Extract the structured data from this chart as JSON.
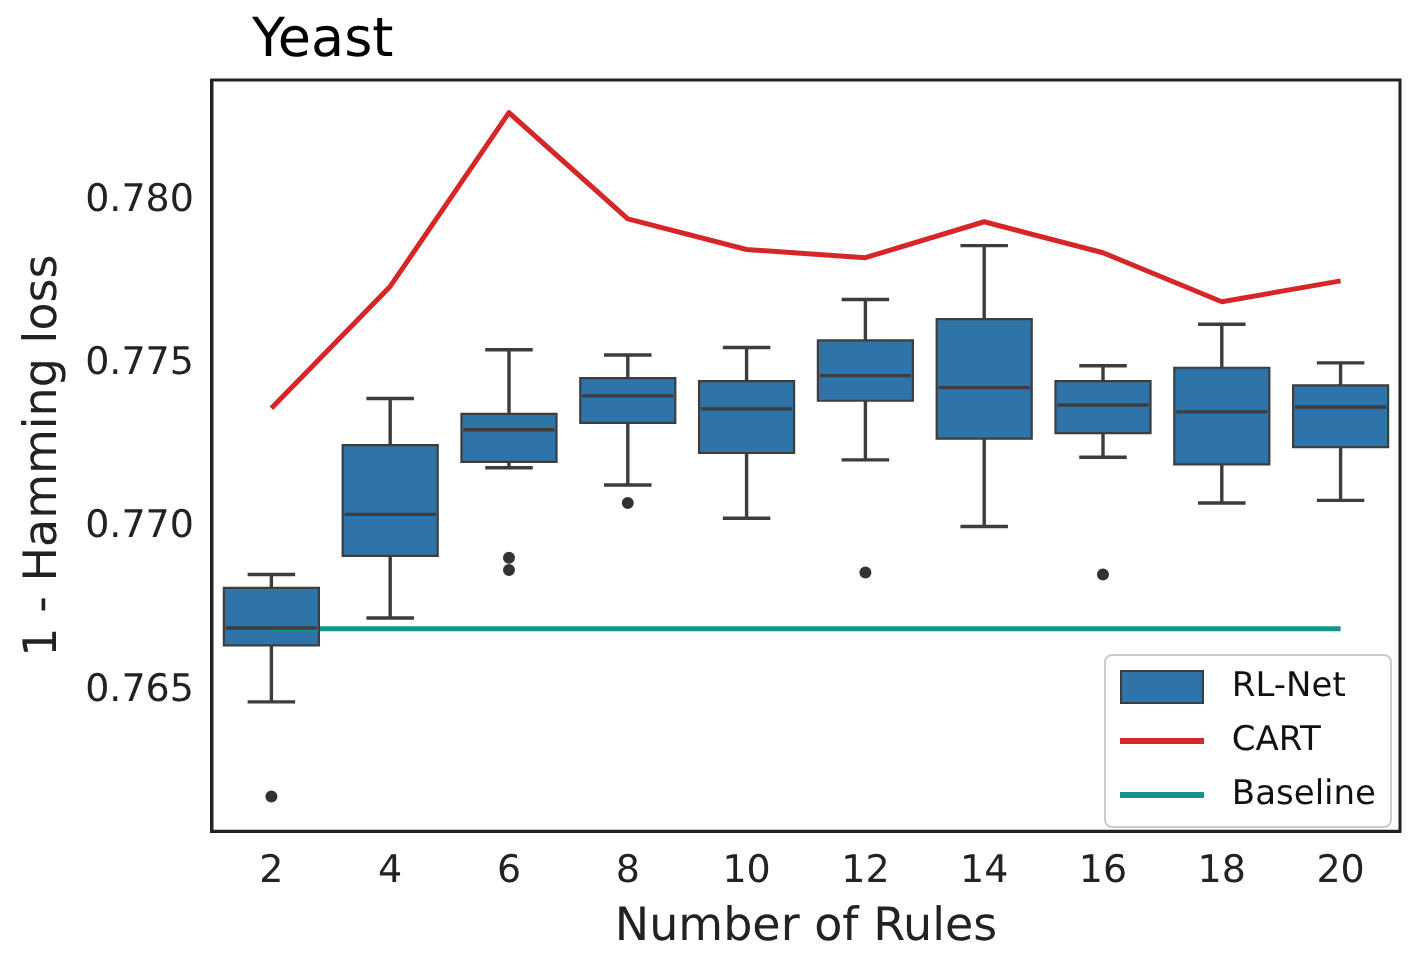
{
  "chart_data": {
    "type": "box",
    "title": "Yeast",
    "xlabel": "Number of Rules",
    "ylabel": "1 - Hamming loss",
    "categories": [
      "2",
      "4",
      "6",
      "8",
      "10",
      "12",
      "14",
      "16",
      "18",
      "20"
    ],
    "series": [
      {
        "name": "RL-Net",
        "type": "box",
        "color": "#2f74a8",
        "boxes": [
          {
            "low": 0.76466,
            "q1": 0.76639,
            "median": 0.76692,
            "q3": 0.76815,
            "high": 0.76856,
            "outliers": [
              0.76176
            ]
          },
          {
            "low": 0.76723,
            "q1": 0.76913,
            "median": 0.7704,
            "q3": 0.77252,
            "high": 0.77395
          },
          {
            "low": 0.77183,
            "q1": 0.77201,
            "median": 0.77299,
            "q3": 0.77348,
            "high": 0.77544,
            "outliers": [
              0.76907,
              0.7687
            ]
          },
          {
            "low": 0.7713,
            "q1": 0.7732,
            "median": 0.77403,
            "q3": 0.77457,
            "high": 0.77528,
            "outliers": [
              0.77075
            ]
          },
          {
            "low": 0.77028,
            "q1": 0.77228,
            "median": 0.77363,
            "q3": 0.77448,
            "high": 0.77551
          },
          {
            "low": 0.77207,
            "q1": 0.77388,
            "median": 0.77465,
            "q3": 0.77573,
            "high": 0.77698,
            "outliers": [
              0.76862
            ]
          },
          {
            "low": 0.77003,
            "q1": 0.77272,
            "median": 0.77428,
            "q3": 0.77638,
            "high": 0.77863
          },
          {
            "low": 0.77215,
            "q1": 0.77289,
            "median": 0.77375,
            "q3": 0.77448,
            "high": 0.77495,
            "outliers": [
              0.76856
            ]
          },
          {
            "low": 0.77075,
            "q1": 0.77193,
            "median": 0.77354,
            "q3": 0.77489,
            "high": 0.77622
          },
          {
            "low": 0.77083,
            "q1": 0.77246,
            "median": 0.77369,
            "q3": 0.77435,
            "high": 0.77504
          }
        ]
      },
      {
        "name": "CART",
        "type": "line",
        "color": "#d62728",
        "values": [
          0.77365,
          0.77738,
          0.7827,
          0.77945,
          0.77851,
          0.77826,
          0.77936,
          0.77841,
          0.77691,
          0.77755
        ]
      },
      {
        "name": "Baseline",
        "type": "line",
        "color": "#1a9488",
        "values": [
          0.7669,
          0.7669,
          0.7669,
          0.7669,
          0.7669,
          0.7669,
          0.7669,
          0.7669,
          0.7669,
          0.7669
        ]
      }
    ],
    "ylim": [
      0.7607,
      0.7837
    ],
    "yticks": [
      0.765,
      {
        "value": 0.77,
        "label": "0.770"
      },
      0.775,
      {
        "value": 0.78,
        "label": "0.780"
      }
    ],
    "legend": "bottom right",
    "marker": "none",
    "line_style": "solid"
  }
}
